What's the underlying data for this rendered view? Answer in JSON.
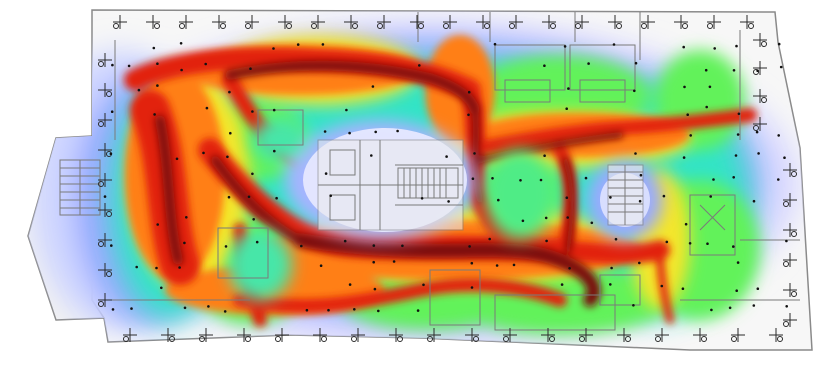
{
  "image": {
    "kind": "office floor plan with occupancy / movement heatmap overlay",
    "background_color": "#ffffff",
    "plan_line_color": "#8a8a8a",
    "plan_fill_color": "#f4f4f4",
    "heat_colors": {
      "cool": "#dcdcff",
      "low": "#8fa0ff",
      "mid_low": "#27e6c8",
      "mid": "#5ef05a",
      "mid_high": "#f2e82a",
      "high": "#ff7a10",
      "very_high": "#e01b0a",
      "max": "#7a0b08"
    },
    "sensor_dot_color": "#111111"
  },
  "regions": [
    "main-floor",
    "left-annex",
    "central-atrium",
    "core-stairs",
    "east-stair-core",
    "north-meeting-cluster",
    "south-meeting-cluster",
    "west-workstations",
    "east-workstations"
  ]
}
